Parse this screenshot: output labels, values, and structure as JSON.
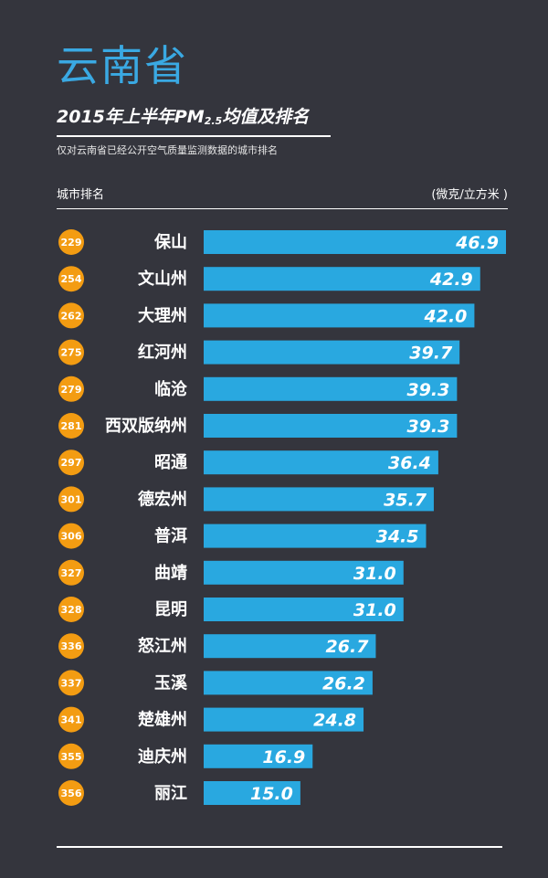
{
  "header": {
    "province": "云南省",
    "subtitle_pre": "2015年上半年PM",
    "subtitle_sub": "2.5",
    "subtitle_post": "均值及排名",
    "note": "仅对云南省已经公开空气质量监测数据的城市排名",
    "col_left": "城市排名",
    "col_right": "(微克/立方米 )"
  },
  "colors": {
    "background": "#34353d",
    "bar": "#29a8e0",
    "rank_badge": "#f39c12",
    "title": "#3aa9e3"
  },
  "chart_data": {
    "type": "bar",
    "orientation": "horizontal",
    "title": "2015年上半年PM2.5均值及排名",
    "unit": "微克/立方米",
    "xlim": [
      0,
      46.9
    ],
    "categories": [
      "保山",
      "文山州",
      "大理州",
      "红河州",
      "临沧",
      "西双版纳州",
      "昭通",
      "德宏州",
      "普洱",
      "曲靖",
      "昆明",
      "怒江州",
      "玉溪",
      "楚雄州",
      "迪庆州",
      "丽江"
    ],
    "ranks": [
      "229",
      "254",
      "262",
      "275",
      "279",
      "281",
      "297",
      "301",
      "306",
      "327",
      "328",
      "336",
      "337",
      "341",
      "355",
      "356"
    ],
    "values": [
      46.9,
      42.9,
      42.0,
      39.7,
      39.3,
      39.3,
      36.4,
      35.7,
      34.5,
      31.0,
      31.0,
      26.7,
      26.2,
      24.8,
      16.9,
      15.0
    ],
    "value_labels": [
      "46.9",
      "42.9",
      "42.0",
      "39.7",
      "39.3",
      "39.3",
      "36.4",
      "35.7",
      "34.5",
      "31.0",
      "31.0",
      "26.7",
      "26.2",
      "24.8",
      "16.9",
      "15.0"
    ]
  }
}
